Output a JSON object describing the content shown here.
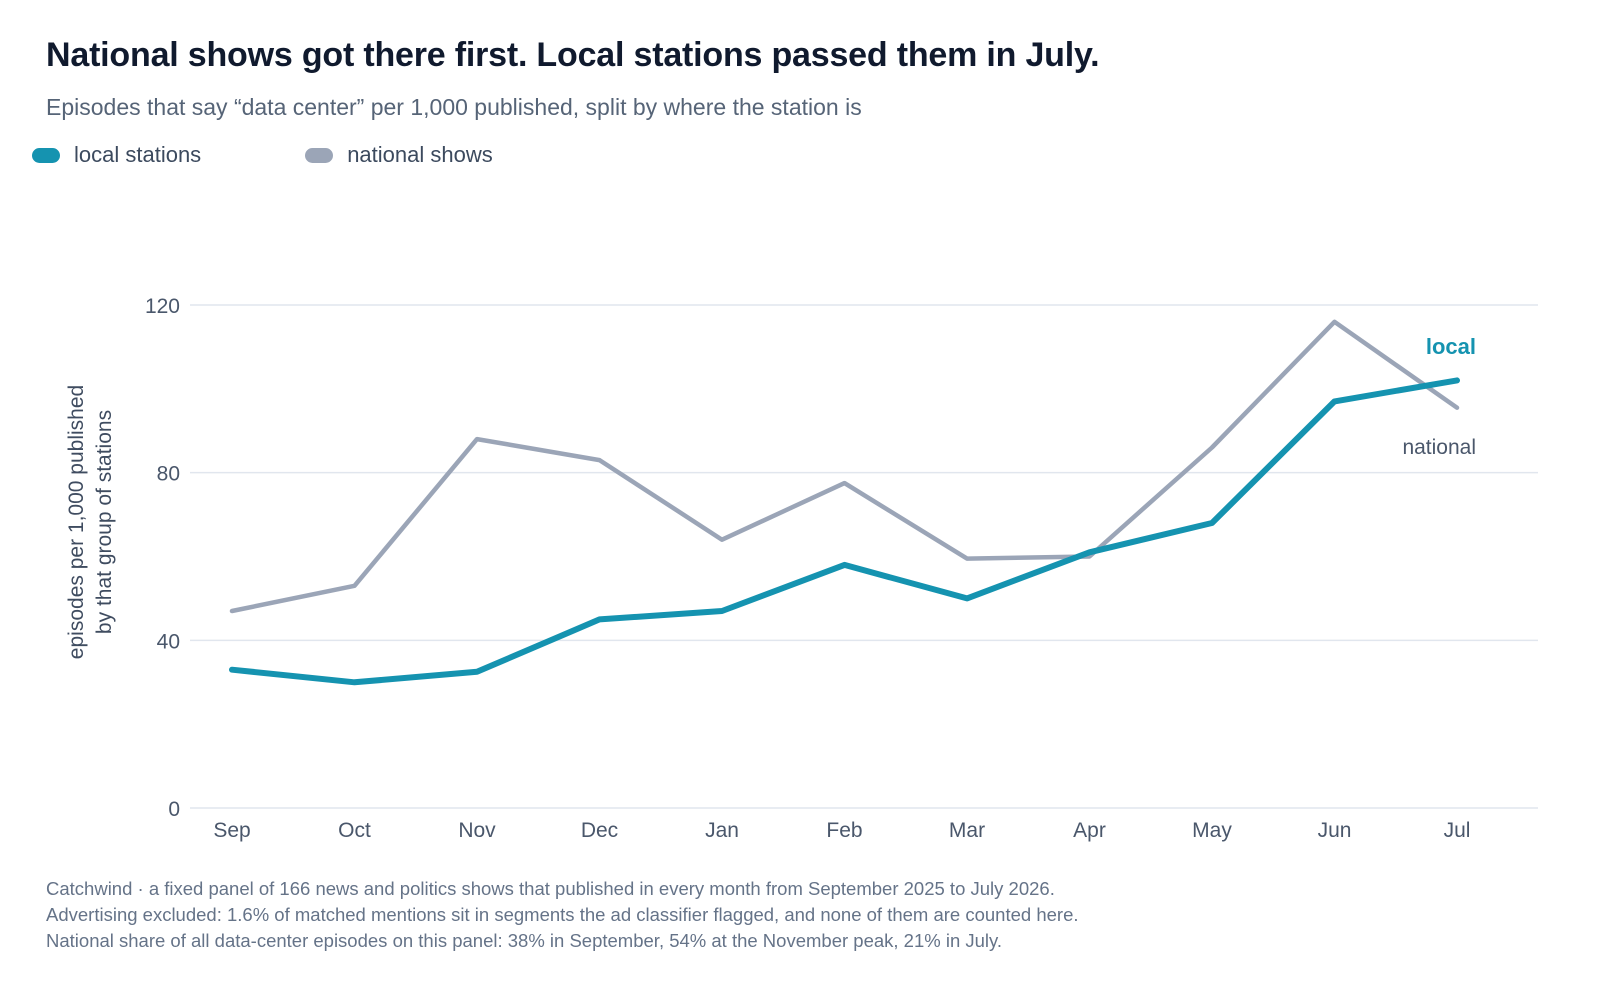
{
  "title": "National shows got there first. Local stations passed them in July.",
  "subtitle": "Episodes that say “data center” per 1,000 published, split by where the station is",
  "legend": [
    {
      "label": "local stations",
      "color": "#1593b0"
    },
    {
      "label": "national shows",
      "color": "#9ba5b7"
    }
  ],
  "footer": {
    "line1": "Catchwind · a fixed panel of 166 news and politics shows that published in every month from September 2025 to July 2026.",
    "line2": "Advertising excluded: 1.6% of matched mentions sit in segments the ad classifier flagged, and none of them are counted here.",
    "line3": "National share of all data-center episodes on this panel: 38% in September, 54% at the November peak, 21% in July."
  },
  "chart_data": {
    "type": "line",
    "categories": [
      "Sep",
      "Oct",
      "Nov",
      "Dec",
      "Jan",
      "Feb",
      "Mar",
      "Apr",
      "May",
      "Jun",
      "Jul"
    ],
    "series": [
      {
        "name": "local stations",
        "end_label": "local",
        "color": "#1593b0",
        "values": [
          33,
          30,
          32.5,
          45,
          47,
          58,
          50,
          61,
          68,
          97,
          102
        ]
      },
      {
        "name": "national shows",
        "end_label": "national",
        "color": "#9ba5b7",
        "values": [
          47,
          53,
          88,
          83,
          64,
          77.5,
          59.5,
          60,
          86,
          116,
          95.5
        ]
      }
    ],
    "ylabel_line1": "episodes per 1,000 published",
    "ylabel_line2": "by that group of stations",
    "yticks": [
      0,
      40,
      80,
      120
    ],
    "ylim": [
      0,
      120
    ],
    "grid": true,
    "legend_position": "top-left"
  }
}
